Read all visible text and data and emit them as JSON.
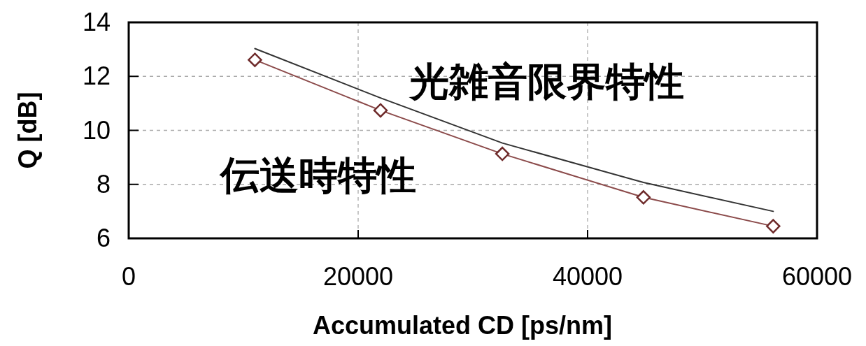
{
  "chart_data": {
    "type": "line",
    "xlabel": "Accumulated CD [ps/nm]",
    "ylabel": "Q [dB]",
    "x": [
      11000,
      21950,
      32570,
      44870,
      56180
    ],
    "xlim": [
      0,
      60000
    ],
    "xticks": [
      0,
      20000,
      40000,
      60000
    ],
    "ylim": [
      6,
      14
    ],
    "yticks": [
      6,
      8,
      10,
      12,
      14
    ],
    "grid": true,
    "legend": false,
    "series": [
      {
        "name": "光雑音限界特性",
        "color": "#333333",
        "marker": "none",
        "values": [
          13.03,
          11.2,
          9.53,
          8.07,
          7.0
        ]
      },
      {
        "name": "伝送時特性",
        "color": "#8b4a4a",
        "marker": "diamond",
        "values": [
          12.61,
          10.74,
          9.13,
          7.52,
          6.45
        ]
      }
    ]
  }
}
